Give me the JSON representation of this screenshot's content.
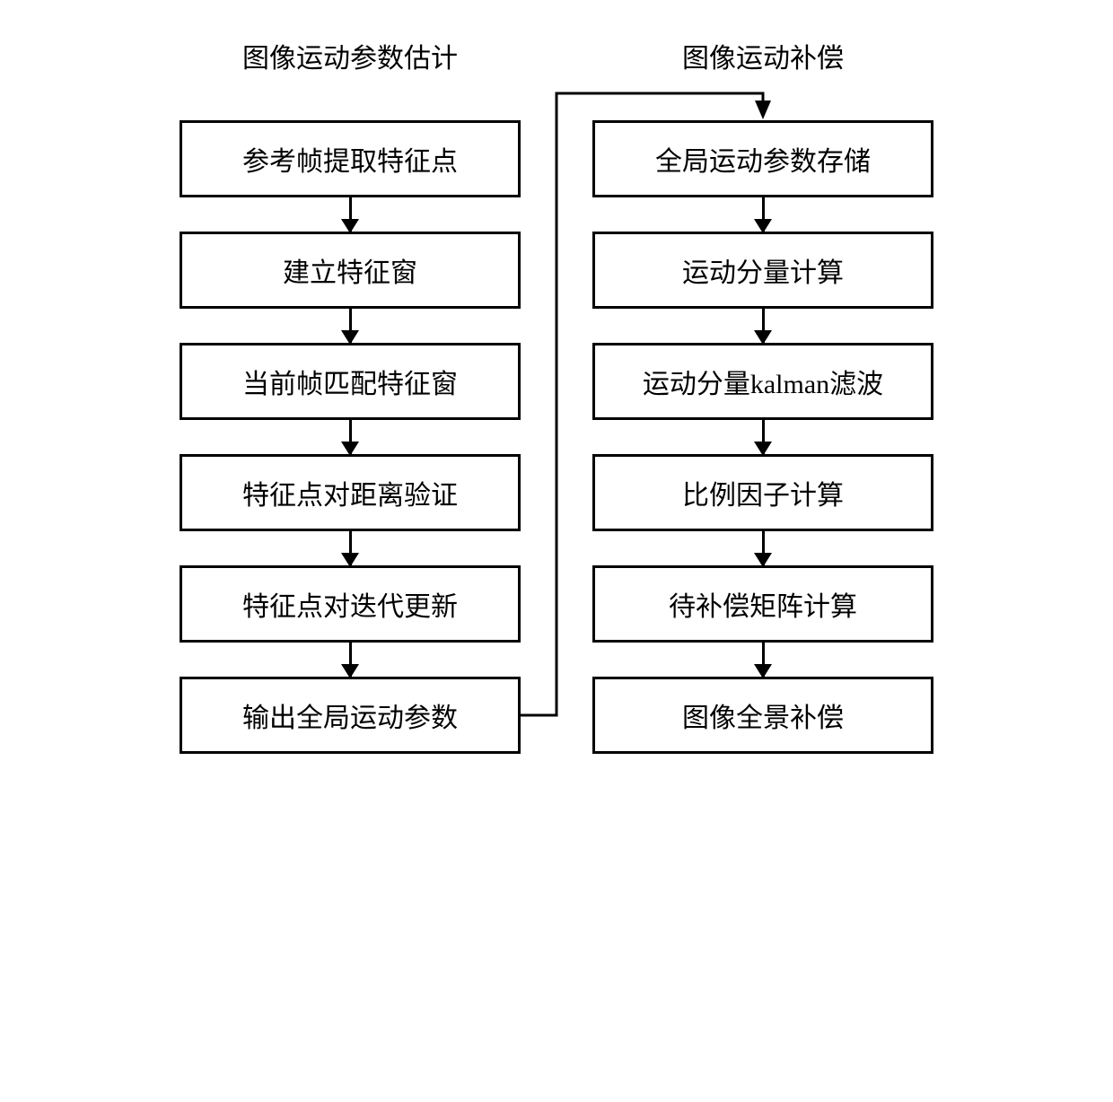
{
  "layout": {
    "type": "flowchart",
    "columns": 2,
    "node_border_color": "#000000",
    "node_border_width": 3,
    "node_background": "#ffffff",
    "text_color": "#000000",
    "node_fontsize": 30,
    "title_fontsize": 30,
    "arrow_color": "#000000",
    "arrow_line_width": 3,
    "arrowhead_size": 16,
    "node_min_width": 380,
    "node_padding_v": 18,
    "node_padding_h": 20,
    "column_gap": 80,
    "arrow_gap": 38
  },
  "left_column": {
    "title": "图像运动参数估计",
    "nodes": [
      {
        "id": "l1",
        "label": "参考帧提取特征点"
      },
      {
        "id": "l2",
        "label": "建立特征窗"
      },
      {
        "id": "l3",
        "label": "当前帧匹配特征窗"
      },
      {
        "id": "l4",
        "label": "特征点对距离验证"
      },
      {
        "id": "l5",
        "label": "特征点对迭代更新"
      },
      {
        "id": "l6",
        "label": "输出全局运动参数"
      }
    ]
  },
  "right_column": {
    "title": "图像运动补偿",
    "nodes": [
      {
        "id": "r1",
        "label": "全局运动参数存储"
      },
      {
        "id": "r2",
        "label": "运动分量计算"
      },
      {
        "id": "r3",
        "label": "运动分量kalman滤波"
      },
      {
        "id": "r4",
        "label": "比例因子计算"
      },
      {
        "id": "r5",
        "label": "待补偿矩阵计算"
      },
      {
        "id": "r6",
        "label": "图像全景补偿"
      }
    ]
  },
  "cross_edge": {
    "from": "l6",
    "to": "r1",
    "description": "left-bottom-output to right-top-input"
  }
}
